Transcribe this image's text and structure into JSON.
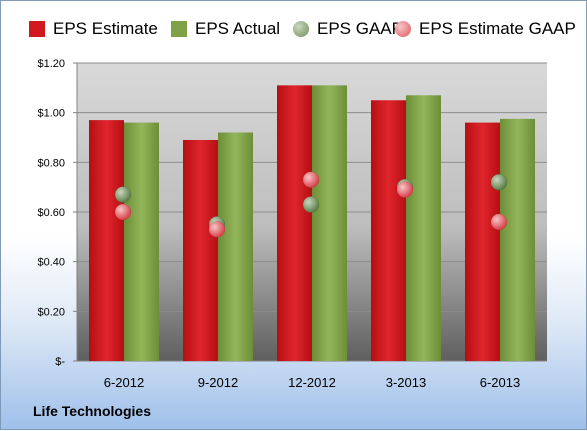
{
  "chart_data": {
    "type": "bar",
    "categories": [
      "6-2012",
      "9-2012",
      "12-2012",
      "3-2013",
      "6-2013"
    ],
    "series": [
      {
        "name": "EPS Estimate",
        "kind": "bar",
        "color": "#d0181f",
        "values": [
          0.97,
          0.89,
          1.11,
          1.05,
          0.96
        ]
      },
      {
        "name": "EPS Actual",
        "kind": "bar",
        "color": "#7fa046",
        "values": [
          0.96,
          0.92,
          1.11,
          1.07,
          0.975
        ]
      },
      {
        "name": "EPS GAAP",
        "kind": "marker",
        "color": "#6f8f5a",
        "values": [
          0.67,
          0.55,
          0.63,
          0.7,
          0.72
        ]
      },
      {
        "name": "EPS Estimate GAAP",
        "kind": "marker",
        "color": "#e0545a",
        "values": [
          0.6,
          0.53,
          0.73,
          0.69,
          0.56
        ]
      }
    ],
    "ylim": [
      0,
      1.2
    ],
    "yticks": [
      0,
      0.2,
      0.4,
      0.6,
      0.8,
      1.0,
      1.2
    ],
    "ytick_labels": [
      "$-",
      "$0.20",
      "$0.40",
      "$0.60",
      "$0.80",
      "$1.00",
      "$1.20"
    ],
    "grid": true,
    "legend_position": "top"
  },
  "company": "Life Technologies"
}
